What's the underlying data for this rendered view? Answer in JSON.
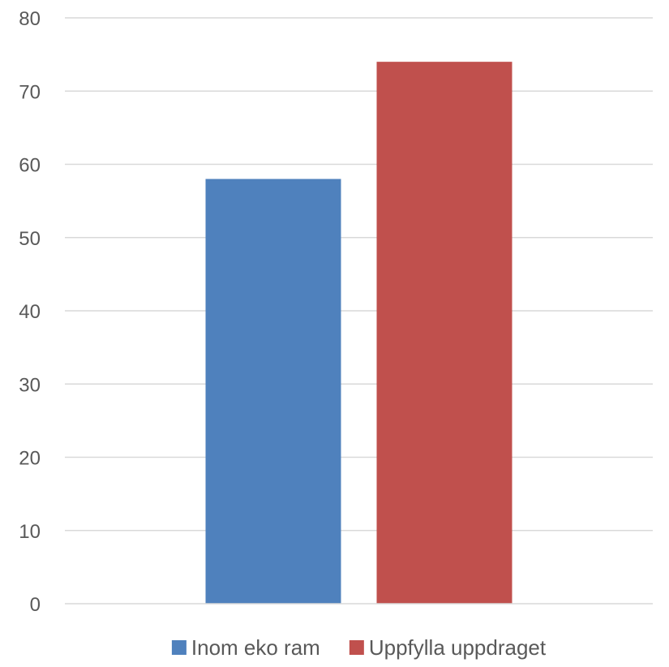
{
  "chart_data": {
    "type": "bar",
    "categories": [
      ""
    ],
    "series": [
      {
        "name": "Inom eko ram",
        "values": [
          58
        ],
        "color": "#4f81bd"
      },
      {
        "name": "Uppfylla uppdraget",
        "values": [
          74
        ],
        "color": "#c0504d"
      }
    ],
    "ylim": [
      0,
      80
    ],
    "yticks": [
      0,
      10,
      20,
      30,
      40,
      50,
      60,
      70,
      80
    ],
    "grid": true,
    "legend_position": "bottom"
  }
}
